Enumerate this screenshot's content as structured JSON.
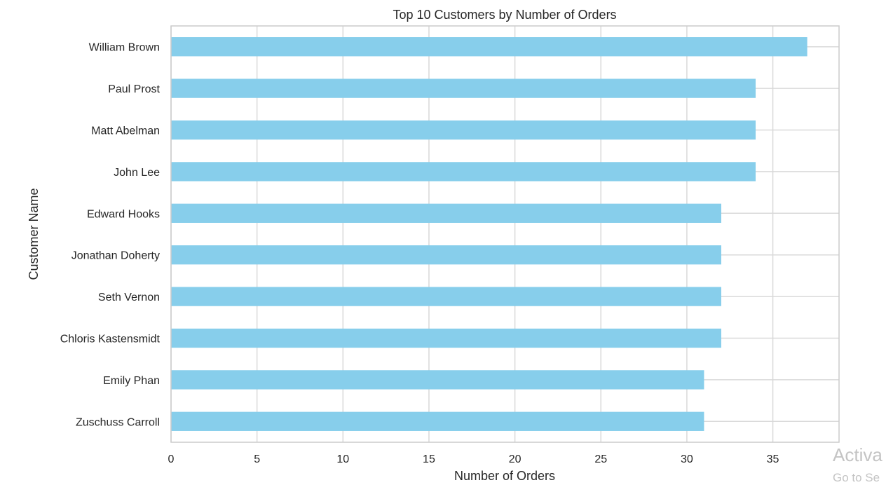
{
  "chart_data": {
    "type": "bar",
    "orientation": "horizontal",
    "title": "Top 10 Customers by Number of Orders",
    "xlabel": "Number of Orders",
    "ylabel": "Customer Name",
    "categories": [
      "William Brown",
      "Paul Prost",
      "Matt Abelman",
      "John Lee",
      "Edward Hooks",
      "Jonathan Doherty",
      "Seth Vernon",
      "Chloris Kastensmidt",
      "Emily Phan",
      "Zuschuss Carroll"
    ],
    "values": [
      37,
      34,
      34,
      34,
      32,
      32,
      32,
      32,
      31,
      31
    ],
    "xlim": [
      0,
      38.85
    ],
    "xticks": [
      0,
      5,
      10,
      15,
      20,
      25,
      30,
      35
    ],
    "grid": true,
    "bar_color": "#87ceeb",
    "grid_color": "#d9d9d9",
    "frame_color": "#cccccc"
  },
  "watermark": {
    "line1": "Activa",
    "line2": "Go to Se"
  }
}
